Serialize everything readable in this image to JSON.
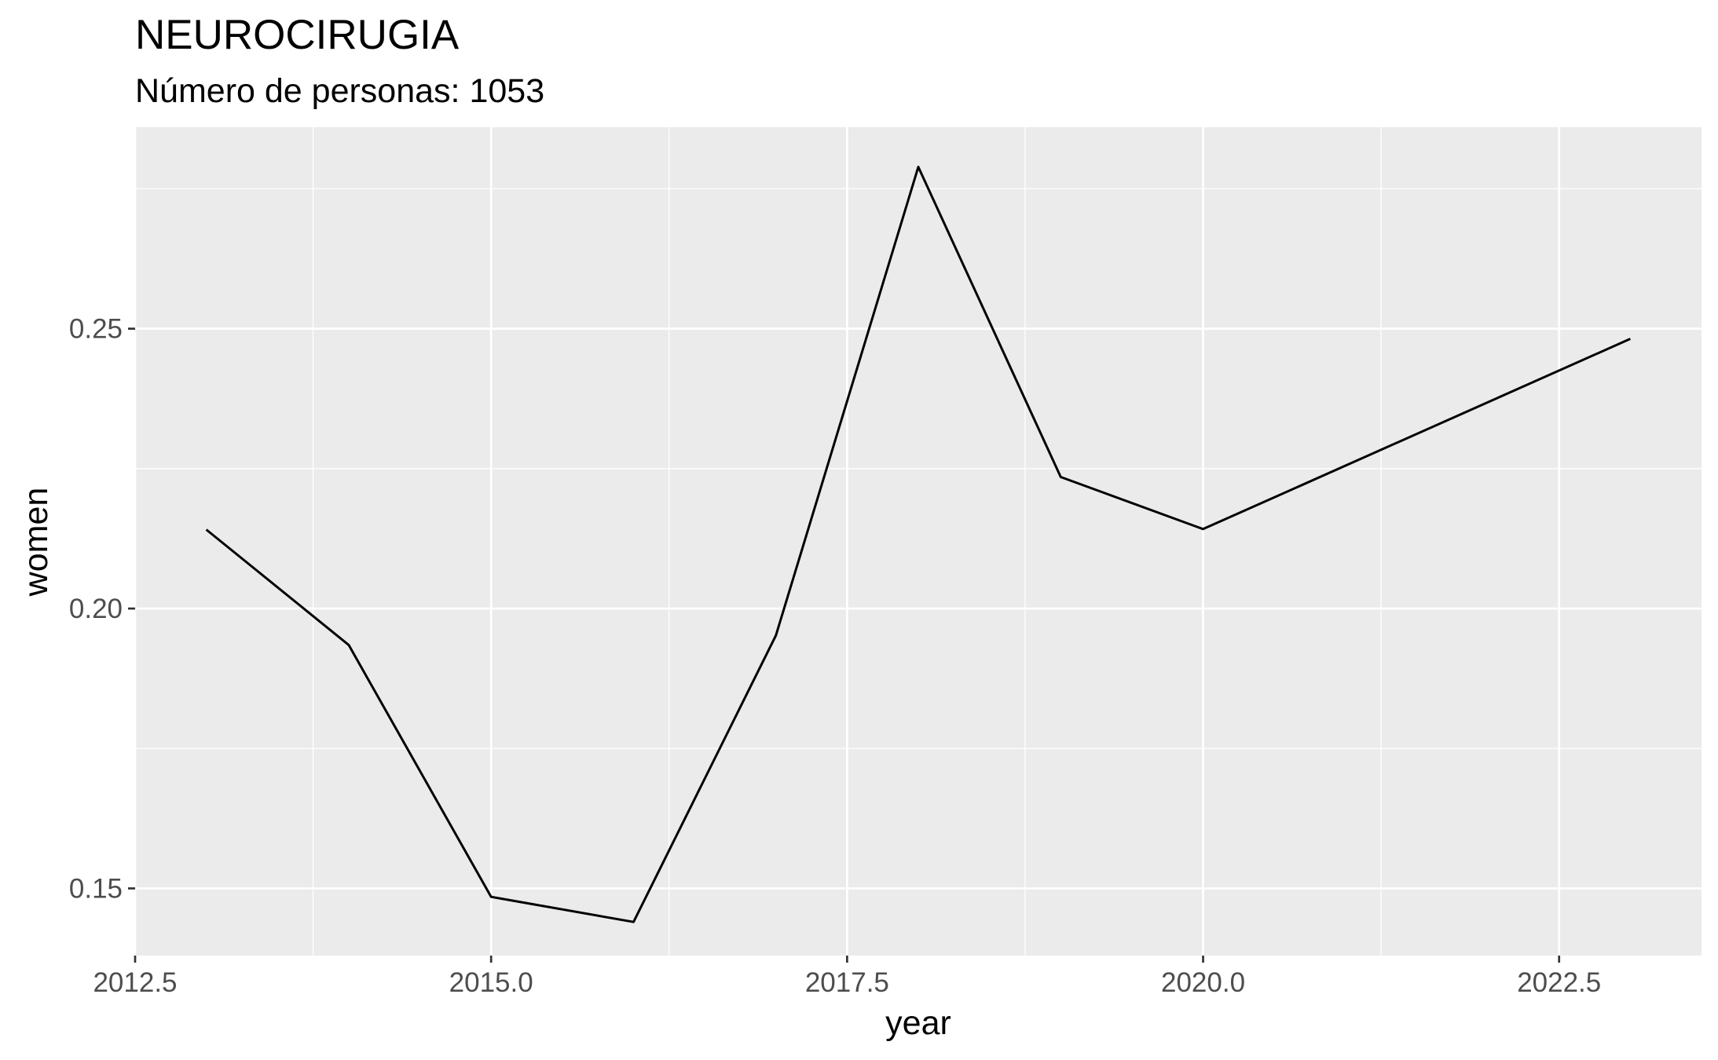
{
  "chart_data": {
    "type": "line",
    "title": "NEUROCIRUGIA",
    "subtitle": "Número de personas: 1053",
    "xlabel": "year",
    "ylabel": "women",
    "xlim": [
      2012.5,
      2023.5
    ],
    "ylim": [
      0.138,
      0.286
    ],
    "x_ticks": [
      2012.5,
      2015.0,
      2017.5,
      2020.0,
      2022.5
    ],
    "x_tick_labels": [
      "2012.5",
      "2015.0",
      "2017.5",
      "2020.0",
      "2022.5"
    ],
    "y_ticks": [
      0.15,
      0.2,
      0.25
    ],
    "y_tick_labels": [
      "0.15",
      "0.20",
      "0.25"
    ],
    "grid": true,
    "legend": "none",
    "series": [
      {
        "x": [
          2013,
          2014,
          2015,
          2016,
          2017,
          2018,
          2019,
          2020,
          2023
        ],
        "y": [
          0.2141,
          0.1935,
          0.1485,
          0.144,
          0.1952,
          0.2789,
          0.2235,
          0.2142,
          0.2482
        ]
      }
    ],
    "colors": {
      "panel": "#ebebeb",
      "grid": "#ffffff",
      "line": "#000000",
      "tick_text": "#4d4d4d",
      "tick_mark": "#333333"
    }
  }
}
